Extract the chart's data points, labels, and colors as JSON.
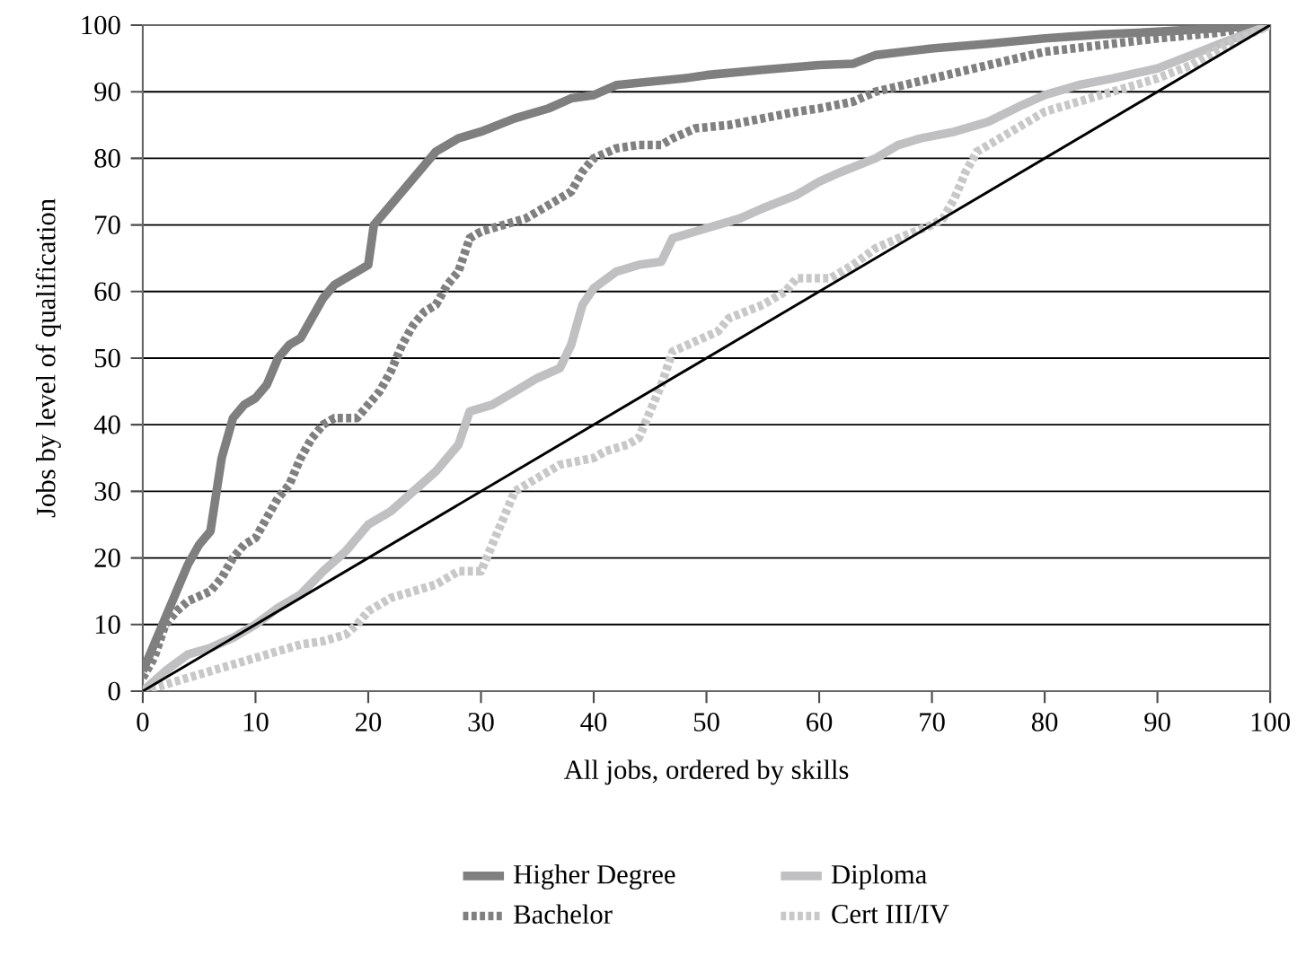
{
  "chart_data": {
    "type": "line",
    "xlabel": "All jobs, ordered by skills",
    "ylabel": "Jobs by level of qualification",
    "xlim": [
      0,
      100
    ],
    "ylim": [
      0,
      100
    ],
    "xticks": [
      0,
      10,
      20,
      30,
      40,
      50,
      60,
      70,
      80,
      90,
      100
    ],
    "yticks": [
      0,
      10,
      20,
      30,
      40,
      50,
      60,
      70,
      80,
      90,
      100
    ],
    "grid": "y",
    "legend": "bottom",
    "marker": "none",
    "series": [
      {
        "name": "Higher Degree",
        "color": "#7f7f80",
        "line_style": "solid",
        "x": [
          0,
          1,
          2,
          3,
          4,
          5,
          6,
          7,
          8,
          9,
          10,
          11,
          12,
          13,
          14,
          15,
          16,
          17,
          18,
          19,
          20,
          20.5,
          22,
          24,
          26,
          28,
          30,
          33,
          36,
          38,
          40,
          42,
          45,
          48,
          50,
          55,
          60,
          63,
          65,
          70,
          75,
          80,
          85,
          90,
          95,
          100
        ],
        "values": [
          3,
          7,
          11,
          15,
          19,
          22,
          24,
          35,
          41,
          43,
          44,
          46,
          50,
          52,
          53,
          56,
          59,
          61,
          62,
          63,
          64,
          70,
          73,
          77,
          81,
          83,
          84,
          86,
          87.5,
          89,
          89.5,
          91,
          91.5,
          92,
          92.5,
          93.3,
          94,
          94.2,
          95.5,
          96.5,
          97.2,
          98,
          98.6,
          99,
          99.5,
          100
        ]
      },
      {
        "name": "Bachelor",
        "color": "#808080",
        "line_style": "dotted",
        "x": [
          0,
          1,
          2,
          3,
          4,
          6,
          7,
          8,
          9,
          10,
          11,
          12,
          13,
          14,
          15,
          16,
          17,
          19,
          20,
          21,
          22,
          23,
          24,
          25,
          26,
          27,
          28,
          29,
          30,
          32,
          34,
          36,
          38,
          39,
          40,
          42,
          44,
          46,
          47,
          49,
          52,
          55,
          58,
          60,
          63,
          65,
          70,
          75,
          80,
          85,
          90,
          95,
          100
        ],
        "values": [
          2,
          5,
          10,
          12,
          13.5,
          15,
          17,
          20,
          22,
          23,
          26,
          29,
          31,
          35,
          38,
          40,
          41,
          41,
          43,
          45,
          48,
          52,
          55,
          57,
          58,
          61,
          63,
          68,
          69,
          70,
          71,
          73,
          75,
          78,
          80,
          81.5,
          82,
          82,
          83,
          84.5,
          85,
          86,
          87,
          87.5,
          88.5,
          90,
          92,
          94,
          96,
          97,
          98,
          98.8,
          100
        ]
      },
      {
        "name": "Diploma",
        "color": "#c0c0c2",
        "line_style": "solid",
        "x": [
          0,
          2,
          4,
          6,
          8,
          10,
          12,
          14,
          16,
          18,
          20,
          22,
          24,
          26,
          28,
          29,
          31,
          33,
          35,
          37,
          38,
          39,
          40,
          42,
          44,
          46,
          47,
          49,
          51,
          53,
          55,
          58,
          60,
          62,
          65,
          67,
          69,
          72,
          75,
          78,
          80,
          83,
          86,
          90,
          93,
          96,
          100
        ],
        "values": [
          0,
          3,
          5.5,
          6.5,
          8,
          10,
          12.5,
          14.5,
          18,
          21,
          25,
          27,
          30,
          33,
          37,
          42,
          43,
          45,
          47,
          48.5,
          52,
          58,
          60.5,
          63,
          64,
          64.5,
          68,
          69,
          70,
          71,
          72.5,
          74.5,
          76.5,
          78,
          80,
          82,
          83,
          84,
          85.5,
          88,
          89.5,
          91,
          92,
          93.5,
          95.5,
          97.5,
          100
        ]
      },
      {
        "name": "Cert III/IV",
        "color": "#c8c8c8",
        "line_style": "dotted",
        "x": [
          0,
          2,
          4,
          6,
          8,
          10,
          12,
          14,
          16,
          18,
          19,
          20,
          22,
          24,
          26,
          28,
          30,
          31,
          32,
          33,
          35,
          37,
          40,
          41,
          43,
          44,
          45,
          46,
          47,
          49,
          51,
          52,
          55,
          57,
          58,
          61,
          63,
          65,
          67,
          70,
          71,
          72,
          73,
          74,
          76,
          78,
          80,
          82,
          85,
          88,
          90,
          93,
          96,
          100
        ],
        "values": [
          0,
          1,
          2,
          3,
          4,
          5,
          6,
          7,
          7.5,
          8.5,
          10,
          12,
          14,
          15,
          16,
          18,
          18,
          22,
          26,
          30,
          32,
          34,
          35,
          36,
          37,
          38,
          42,
          46,
          51,
          52.5,
          54,
          56,
          58,
          60,
          62,
          62,
          64,
          66.5,
          68,
          70,
          71,
          74,
          78,
          81,
          83,
          85,
          87,
          88,
          89.5,
          91,
          92,
          94,
          97,
          100
        ]
      },
      {
        "color": "#000000",
        "line_style": "solid",
        "x": [
          0,
          100
        ],
        "values": [
          0,
          100
        ]
      }
    ]
  }
}
